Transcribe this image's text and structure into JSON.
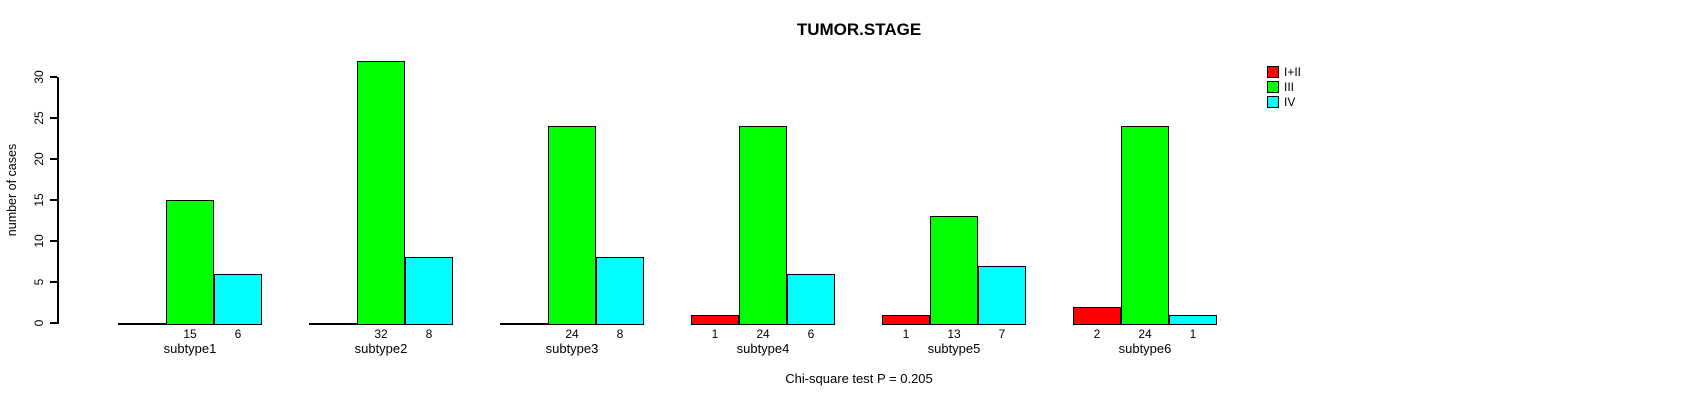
{
  "chart_data": {
    "type": "bar",
    "title": "TUMOR.STAGE",
    "xlabel": "",
    "ylabel": "number of cases",
    "annotation": "Chi-square test P = 0.205",
    "categories": [
      "subtype1",
      "subtype2",
      "subtype3",
      "subtype4",
      "subtype5",
      "subtype6"
    ],
    "series": [
      {
        "name": "I+II",
        "color": "#FF0000",
        "values": [
          0,
          0,
          0,
          1,
          1,
          2
        ]
      },
      {
        "name": "III",
        "color": "#00FF00",
        "values": [
          15,
          32,
          24,
          24,
          13,
          24
        ]
      },
      {
        "name": "IV",
        "color": "#00FFFF",
        "values": [
          6,
          8,
          8,
          6,
          7,
          1
        ]
      }
    ],
    "yticks": [
      0,
      5,
      10,
      15,
      20,
      25,
      30
    ],
    "ylim": [
      0,
      32
    ],
    "grid": false,
    "legend_position": "top-right",
    "bar_value_labels_shown": true,
    "zero_value_labels_hidden": true,
    "background_color": "#ffffff",
    "axis_color": "#000000"
  }
}
